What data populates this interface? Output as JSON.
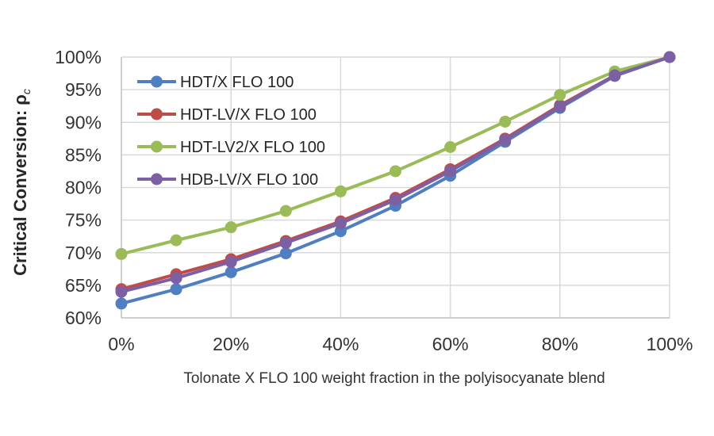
{
  "chart_data": {
    "type": "line",
    "title": "",
    "xlabel": "Tolonate X FLO 100 weight fraction in the polyisocyanate blend",
    "ylabel": "Critical Conversion: ρ",
    "ylabel_subscript": "c",
    "x": [
      0,
      10,
      20,
      30,
      40,
      50,
      60,
      70,
      80,
      90,
      100
    ],
    "xlim": [
      0,
      100
    ],
    "ylim": [
      60,
      100
    ],
    "x_ticks": [
      0,
      20,
      40,
      60,
      80,
      100
    ],
    "x_tick_labels": [
      "0%",
      "20%",
      "40%",
      "60%",
      "80%",
      "100%"
    ],
    "y_ticks": [
      60,
      65,
      70,
      75,
      80,
      85,
      90,
      95,
      100
    ],
    "y_tick_labels": [
      "60%",
      "65%",
      "70%",
      "75%",
      "80%",
      "85%",
      "90%",
      "95%",
      "100%"
    ],
    "grid": true,
    "legend_position": "top-left",
    "series": [
      {
        "name": "HDT/X FLO 100",
        "color": "#4f7fc0",
        "values": [
          62.2,
          64.4,
          67.0,
          69.9,
          73.3,
          77.2,
          81.8,
          87.0,
          92.2,
          97.1,
          100
        ]
      },
      {
        "name": "HDT-LV/X FLO 100",
        "color": "#bd4d4a",
        "values": [
          64.4,
          66.7,
          69.0,
          71.8,
          74.8,
          78.4,
          82.8,
          87.5,
          92.6,
          97.2,
          100
        ]
      },
      {
        "name": "HDT-LV2/X FLO 100",
        "color": "#9bbb59",
        "values": [
          69.8,
          71.9,
          73.9,
          76.4,
          79.4,
          82.5,
          86.2,
          90.1,
          94.2,
          97.8,
          100
        ]
      },
      {
        "name": "HDB-LV/X FLO 100",
        "color": "#7d5fa3",
        "values": [
          64.0,
          66.1,
          68.6,
          71.5,
          74.5,
          78.1,
          82.5,
          87.3,
          92.4,
          97.2,
          100
        ]
      }
    ]
  }
}
